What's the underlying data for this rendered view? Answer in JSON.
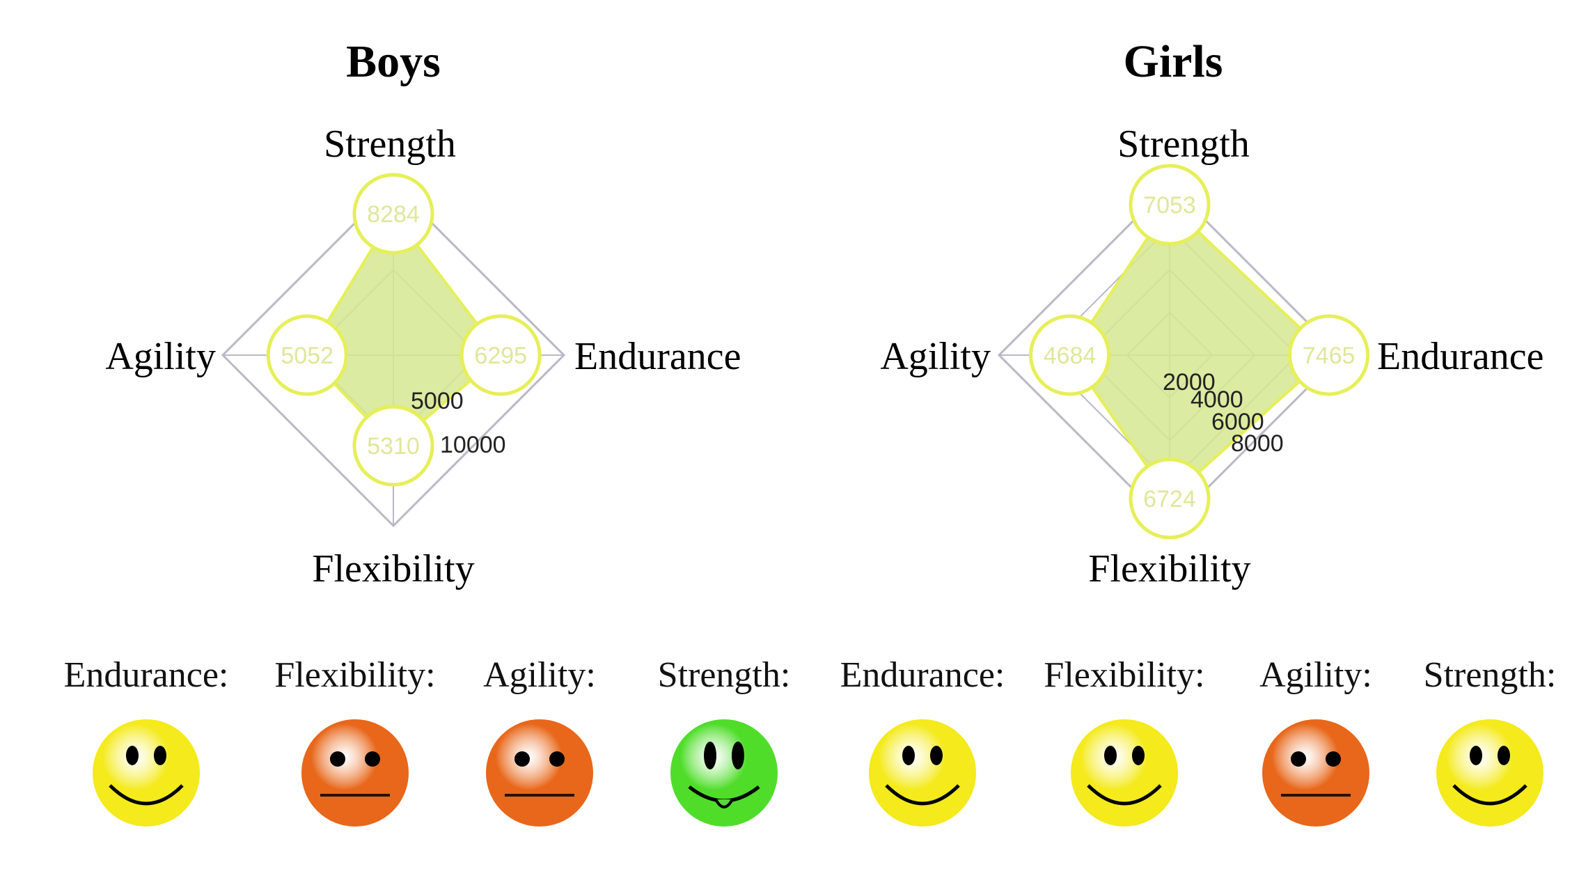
{
  "chart_data": [
    {
      "type": "radar",
      "title": "Boys",
      "axes": [
        "Strength",
        "Endurance",
        "Flexibility",
        "Agility"
      ],
      "values": [
        8284,
        6295,
        5310,
        5052
      ],
      "ticks": [
        "5000",
        "10000"
      ],
      "rlim": [
        0,
        10000
      ]
    },
    {
      "type": "radar",
      "title": "Girls",
      "axes": [
        "Strength",
        "Endurance",
        "Flexibility",
        "Agility"
      ],
      "values": [
        7053,
        7465,
        6724,
        4684
      ],
      "ticks": [
        "2000",
        "4000",
        "6000",
        "8000"
      ],
      "rlim": [
        0,
        8000
      ]
    }
  ],
  "ratings": [
    {
      "label": "Endurance:",
      "mood": "happy"
    },
    {
      "label": "Flexibility:",
      "mood": "neutral"
    },
    {
      "label": "Agility:",
      "mood": "neutral"
    },
    {
      "label": "Strength:",
      "mood": "excellent"
    },
    {
      "label": "Endurance:",
      "mood": "happy"
    },
    {
      "label": "Flexibility:",
      "mood": "happy"
    },
    {
      "label": "Agility:",
      "mood": "neutral"
    },
    {
      "label": "Strength:",
      "mood": "happy"
    }
  ],
  "colors": {
    "fill": "#d5e890",
    "stroke": "#e6ef58",
    "grid": "#b9b9c6",
    "happy": "#f4ea1c",
    "neutral": "#e8671a",
    "excellent": "#4fdd2a"
  }
}
